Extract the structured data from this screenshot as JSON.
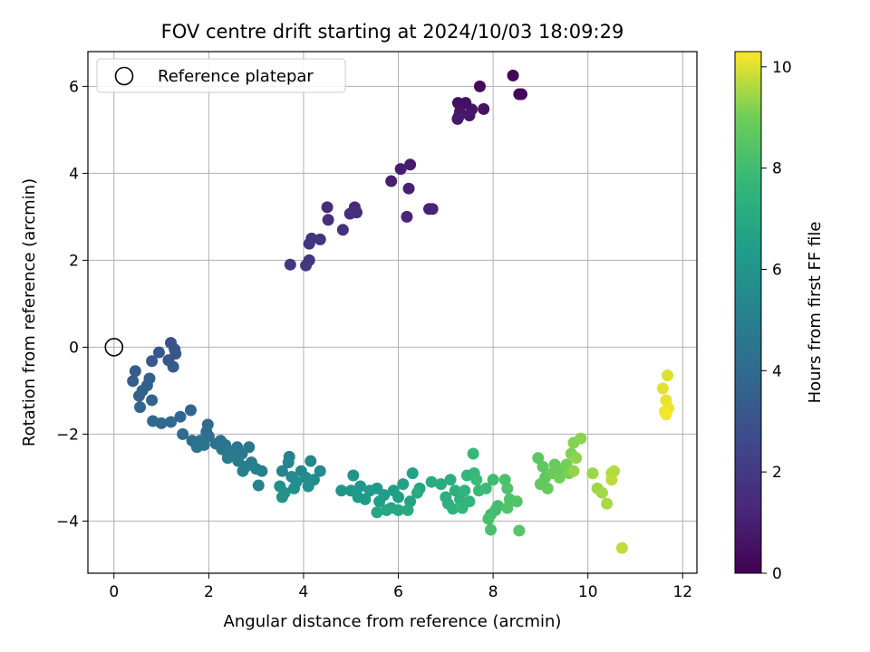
{
  "chart_data": {
    "type": "scatter",
    "title": "FOV centre drift starting at 2024/10/03 18:09:29",
    "xlabel": "Angular distance from reference (arcmin)",
    "ylabel": "Rotation from reference (arcmin)",
    "xlim": [
      -0.55,
      12.3
    ],
    "ylim": [
      -5.2,
      6.8
    ],
    "x_ticks": [
      0,
      2,
      4,
      6,
      8,
      10,
      12
    ],
    "y_ticks": [
      -4,
      -2,
      0,
      2,
      4,
      6
    ],
    "grid": true,
    "legend": {
      "position": "top-left",
      "entries": [
        "Reference platepar"
      ]
    },
    "reference_point": {
      "x": 0,
      "y": 0,
      "label": "Reference platepar"
    },
    "colorbar": {
      "label": "Hours from first FF file",
      "range": [
        0,
        10.3
      ],
      "ticks": [
        0,
        2,
        4,
        6,
        8,
        10
      ],
      "colormap": "viridis"
    },
    "points": [
      {
        "x": 8.42,
        "y": 6.25,
        "t": 0.1
      },
      {
        "x": 8.6,
        "y": 5.82,
        "t": 0.15
      },
      {
        "x": 8.55,
        "y": 5.82,
        "t": 0.2
      },
      {
        "x": 7.72,
        "y": 6.0,
        "t": 0.3
      },
      {
        "x": 7.26,
        "y": 5.62,
        "t": 0.45
      },
      {
        "x": 7.42,
        "y": 5.62,
        "t": 0.5
      },
      {
        "x": 7.55,
        "y": 5.47,
        "t": 0.55
      },
      {
        "x": 7.8,
        "y": 5.48,
        "t": 0.6
      },
      {
        "x": 7.3,
        "y": 5.42,
        "t": 0.65
      },
      {
        "x": 7.5,
        "y": 5.33,
        "t": 0.7
      },
      {
        "x": 7.25,
        "y": 5.25,
        "t": 0.75
      },
      {
        "x": 7.27,
        "y": 5.3,
        "t": 0.78
      },
      {
        "x": 6.25,
        "y": 4.2,
        "t": 0.9
      },
      {
        "x": 6.05,
        "y": 4.1,
        "t": 0.95
      },
      {
        "x": 5.85,
        "y": 3.82,
        "t": 1.0
      },
      {
        "x": 6.22,
        "y": 3.65,
        "t": 1.05
      },
      {
        "x": 6.65,
        "y": 3.18,
        "t": 1.1
      },
      {
        "x": 6.72,
        "y": 3.18,
        "t": 1.15
      },
      {
        "x": 6.18,
        "y": 3.0,
        "t": 1.2
      },
      {
        "x": 5.08,
        "y": 3.22,
        "t": 1.4
      },
      {
        "x": 4.5,
        "y": 3.22,
        "t": 1.45
      },
      {
        "x": 5.12,
        "y": 3.1,
        "t": 1.5
      },
      {
        "x": 4.98,
        "y": 3.07,
        "t": 1.55
      },
      {
        "x": 4.52,
        "y": 2.93,
        "t": 1.6
      },
      {
        "x": 4.83,
        "y": 2.7,
        "t": 1.65
      },
      {
        "x": 4.35,
        "y": 2.48,
        "t": 1.7
      },
      {
        "x": 4.17,
        "y": 2.5,
        "t": 1.75
      },
      {
        "x": 4.12,
        "y": 2.38,
        "t": 1.8
      },
      {
        "x": 4.12,
        "y": 2.0,
        "t": 1.85
      },
      {
        "x": 3.72,
        "y": 1.9,
        "t": 1.9
      },
      {
        "x": 4.05,
        "y": 1.88,
        "t": 1.95
      },
      {
        "x": 1.2,
        "y": 0.1,
        "t": 3.0
      },
      {
        "x": 1.28,
        "y": -0.05,
        "t": 3.05
      },
      {
        "x": 1.3,
        "y": -0.15,
        "t": 3.1
      },
      {
        "x": 0.95,
        "y": -0.12,
        "t": 3.15
      },
      {
        "x": 1.15,
        "y": -0.3,
        "t": 3.2
      },
      {
        "x": 0.8,
        "y": -0.32,
        "t": 3.25
      },
      {
        "x": 1.25,
        "y": -0.45,
        "t": 3.3
      },
      {
        "x": 0.45,
        "y": -0.55,
        "t": 3.35
      },
      {
        "x": 0.4,
        "y": -0.78,
        "t": 3.4
      },
      {
        "x": 0.75,
        "y": -0.72,
        "t": 3.45
      },
      {
        "x": 0.7,
        "y": -0.88,
        "t": 3.5
      },
      {
        "x": 0.6,
        "y": -1.0,
        "t": 3.55
      },
      {
        "x": 0.53,
        "y": -1.12,
        "t": 3.6
      },
      {
        "x": 0.8,
        "y": -1.22,
        "t": 3.65
      },
      {
        "x": 0.55,
        "y": -1.38,
        "t": 3.7
      },
      {
        "x": 1.62,
        "y": -1.45,
        "t": 3.75
      },
      {
        "x": 1.4,
        "y": -1.6,
        "t": 3.8
      },
      {
        "x": 0.82,
        "y": -1.7,
        "t": 3.85
      },
      {
        "x": 1.0,
        "y": -1.75,
        "t": 3.9
      },
      {
        "x": 1.2,
        "y": -1.72,
        "t": 3.95
      },
      {
        "x": 1.98,
        "y": -1.78,
        "t": 4.0
      },
      {
        "x": 1.95,
        "y": -1.95,
        "t": 4.05
      },
      {
        "x": 1.45,
        "y": -2.0,
        "t": 4.1
      },
      {
        "x": 2.0,
        "y": -2.05,
        "t": 4.15
      },
      {
        "x": 1.65,
        "y": -2.15,
        "t": 4.2
      },
      {
        "x": 2.25,
        "y": -2.15,
        "t": 4.25
      },
      {
        "x": 1.82,
        "y": -2.15,
        "t": 4.3
      },
      {
        "x": 1.9,
        "y": -2.25,
        "t": 4.35
      },
      {
        "x": 2.15,
        "y": -2.22,
        "t": 4.4
      },
      {
        "x": 1.75,
        "y": -2.3,
        "t": 4.45
      },
      {
        "x": 2.35,
        "y": -2.25,
        "t": 4.5
      },
      {
        "x": 2.6,
        "y": -2.3,
        "t": 4.55
      },
      {
        "x": 2.28,
        "y": -2.35,
        "t": 4.6
      },
      {
        "x": 2.85,
        "y": -2.3,
        "t": 4.65
      },
      {
        "x": 2.5,
        "y": -2.4,
        "t": 4.7
      },
      {
        "x": 2.7,
        "y": -2.45,
        "t": 4.75
      },
      {
        "x": 2.4,
        "y": -2.55,
        "t": 4.8
      },
      {
        "x": 2.62,
        "y": -2.62,
        "t": 4.85
      },
      {
        "x": 2.9,
        "y": -2.65,
        "t": 4.9
      },
      {
        "x": 2.78,
        "y": -2.75,
        "t": 4.95
      },
      {
        "x": 2.72,
        "y": -2.85,
        "t": 5.0
      },
      {
        "x": 3.0,
        "y": -2.8,
        "t": 5.05
      },
      {
        "x": 3.12,
        "y": -2.85,
        "t": 5.1
      },
      {
        "x": 3.05,
        "y": -3.18,
        "t": 5.15
      },
      {
        "x": 3.7,
        "y": -2.52,
        "t": 5.2
      },
      {
        "x": 3.68,
        "y": -2.65,
        "t": 5.25
      },
      {
        "x": 3.55,
        "y": -2.85,
        "t": 5.3
      },
      {
        "x": 3.95,
        "y": -2.85,
        "t": 5.35
      },
      {
        "x": 4.15,
        "y": -2.62,
        "t": 5.4
      },
      {
        "x": 4.35,
        "y": -2.85,
        "t": 5.45
      },
      {
        "x": 3.75,
        "y": -2.98,
        "t": 5.5
      },
      {
        "x": 4.05,
        "y": -3.0,
        "t": 5.55
      },
      {
        "x": 3.85,
        "y": -3.1,
        "t": 5.6
      },
      {
        "x": 4.22,
        "y": -3.05,
        "t": 5.65
      },
      {
        "x": 4.1,
        "y": -3.2,
        "t": 5.7
      },
      {
        "x": 3.5,
        "y": -3.2,
        "t": 5.75
      },
      {
        "x": 3.8,
        "y": -3.25,
        "t": 5.8
      },
      {
        "x": 3.6,
        "y": -3.35,
        "t": 5.85
      },
      {
        "x": 3.55,
        "y": -3.45,
        "t": 5.9
      },
      {
        "x": 5.05,
        "y": -2.95,
        "t": 6.0
      },
      {
        "x": 4.8,
        "y": -3.3,
        "t": 6.05
      },
      {
        "x": 5.0,
        "y": -3.3,
        "t": 6.1
      },
      {
        "x": 5.2,
        "y": -3.2,
        "t": 6.15
      },
      {
        "x": 5.15,
        "y": -3.45,
        "t": 6.2
      },
      {
        "x": 5.4,
        "y": -3.3,
        "t": 6.25
      },
      {
        "x": 5.55,
        "y": -3.25,
        "t": 6.3
      },
      {
        "x": 5.3,
        "y": -3.5,
        "t": 6.35
      },
      {
        "x": 5.7,
        "y": -3.4,
        "t": 6.4
      },
      {
        "x": 5.9,
        "y": -3.3,
        "t": 6.45
      },
      {
        "x": 5.6,
        "y": -3.55,
        "t": 6.5
      },
      {
        "x": 6.0,
        "y": -3.45,
        "t": 6.55
      },
      {
        "x": 6.1,
        "y": -3.15,
        "t": 6.6
      },
      {
        "x": 6.3,
        "y": -2.9,
        "t": 6.65
      },
      {
        "x": 6.45,
        "y": -3.25,
        "t": 6.7
      },
      {
        "x": 6.25,
        "y": -3.55,
        "t": 6.75
      },
      {
        "x": 5.85,
        "y": -3.7,
        "t": 6.8
      },
      {
        "x": 5.55,
        "y": -3.8,
        "t": 6.85
      },
      {
        "x": 5.75,
        "y": -3.75,
        "t": 6.9
      },
      {
        "x": 6.0,
        "y": -3.75,
        "t": 6.95
      },
      {
        "x": 6.2,
        "y": -3.75,
        "t": 7.0
      },
      {
        "x": 6.4,
        "y": -3.35,
        "t": 7.05
      },
      {
        "x": 6.7,
        "y": -3.1,
        "t": 7.1
      },
      {
        "x": 6.9,
        "y": -3.15,
        "t": 7.15
      },
      {
        "x": 7.1,
        "y": -3.05,
        "t": 7.2
      },
      {
        "x": 7.0,
        "y": -3.45,
        "t": 7.25
      },
      {
        "x": 7.2,
        "y": -3.3,
        "t": 7.3
      },
      {
        "x": 7.05,
        "y": -3.6,
        "t": 7.35
      },
      {
        "x": 7.3,
        "y": -3.5,
        "t": 7.4
      },
      {
        "x": 7.15,
        "y": -3.72,
        "t": 7.45
      },
      {
        "x": 7.4,
        "y": -3.3,
        "t": 7.5
      },
      {
        "x": 7.5,
        "y": -3.55,
        "t": 7.55
      },
      {
        "x": 7.35,
        "y": -3.7,
        "t": 7.6
      },
      {
        "x": 7.45,
        "y": -2.95,
        "t": 7.65
      },
      {
        "x": 7.6,
        "y": -2.9,
        "t": 7.7
      },
      {
        "x": 7.58,
        "y": -2.45,
        "t": 7.75
      },
      {
        "x": 7.7,
        "y": -3.3,
        "t": 7.8
      },
      {
        "x": 7.85,
        "y": -3.25,
        "t": 7.85
      },
      {
        "x": 7.65,
        "y": -3.05,
        "t": 7.9
      },
      {
        "x": 8.0,
        "y": -3.05,
        "t": 7.95
      },
      {
        "x": 8.1,
        "y": -3.65,
        "t": 8.0
      },
      {
        "x": 7.95,
        "y": -3.85,
        "t": 8.05
      },
      {
        "x": 8.05,
        "y": -3.75,
        "t": 8.1
      },
      {
        "x": 7.9,
        "y": -3.95,
        "t": 8.15
      },
      {
        "x": 7.95,
        "y": -4.2,
        "t": 8.2
      },
      {
        "x": 8.25,
        "y": -3.05,
        "t": 8.25
      },
      {
        "x": 8.3,
        "y": -3.25,
        "t": 8.3
      },
      {
        "x": 8.35,
        "y": -3.5,
        "t": 8.35
      },
      {
        "x": 8.3,
        "y": -3.7,
        "t": 8.4
      },
      {
        "x": 8.5,
        "y": -3.55,
        "t": 8.45
      },
      {
        "x": 8.55,
        "y": -4.22,
        "t": 8.5
      },
      {
        "x": 8.95,
        "y": -2.55,
        "t": 8.6
      },
      {
        "x": 9.05,
        "y": -2.75,
        "t": 8.65
      },
      {
        "x": 9.1,
        "y": -3.0,
        "t": 8.7
      },
      {
        "x": 9.0,
        "y": -3.15,
        "t": 8.75
      },
      {
        "x": 9.15,
        "y": -3.25,
        "t": 8.8
      },
      {
        "x": 9.3,
        "y": -2.7,
        "t": 8.85
      },
      {
        "x": 9.25,
        "y": -2.9,
        "t": 8.9
      },
      {
        "x": 9.45,
        "y": -2.8,
        "t": 8.95
      },
      {
        "x": 9.4,
        "y": -3.0,
        "t": 9.0
      },
      {
        "x": 9.55,
        "y": -2.7,
        "t": 9.05
      },
      {
        "x": 9.6,
        "y": -2.9,
        "t": 9.1
      },
      {
        "x": 9.65,
        "y": -2.45,
        "t": 9.15
      },
      {
        "x": 9.7,
        "y": -2.2,
        "t": 9.2
      },
      {
        "x": 9.85,
        "y": -2.1,
        "t": 9.25
      },
      {
        "x": 9.75,
        "y": -2.55,
        "t": 9.3
      },
      {
        "x": 9.7,
        "y": -2.85,
        "t": 9.35
      },
      {
        "x": 10.1,
        "y": -2.9,
        "t": 9.4
      },
      {
        "x": 10.2,
        "y": -3.25,
        "t": 9.45
      },
      {
        "x": 10.3,
        "y": -3.35,
        "t": 9.5
      },
      {
        "x": 10.4,
        "y": -3.6,
        "t": 9.55
      },
      {
        "x": 10.5,
        "y": -2.9,
        "t": 9.6
      },
      {
        "x": 10.55,
        "y": -2.85,
        "t": 9.65
      },
      {
        "x": 10.5,
        "y": -3.05,
        "t": 9.7
      },
      {
        "x": 10.72,
        "y": -4.62,
        "t": 9.75
      },
      {
        "x": 11.68,
        "y": -0.65,
        "t": 10.0
      },
      {
        "x": 11.58,
        "y": -0.95,
        "t": 10.05
      },
      {
        "x": 11.65,
        "y": -1.22,
        "t": 10.1
      },
      {
        "x": 11.7,
        "y": -1.4,
        "t": 10.15
      },
      {
        "x": 11.62,
        "y": -1.48,
        "t": 10.2
      },
      {
        "x": 11.65,
        "y": -1.55,
        "t": 10.25
      }
    ]
  }
}
